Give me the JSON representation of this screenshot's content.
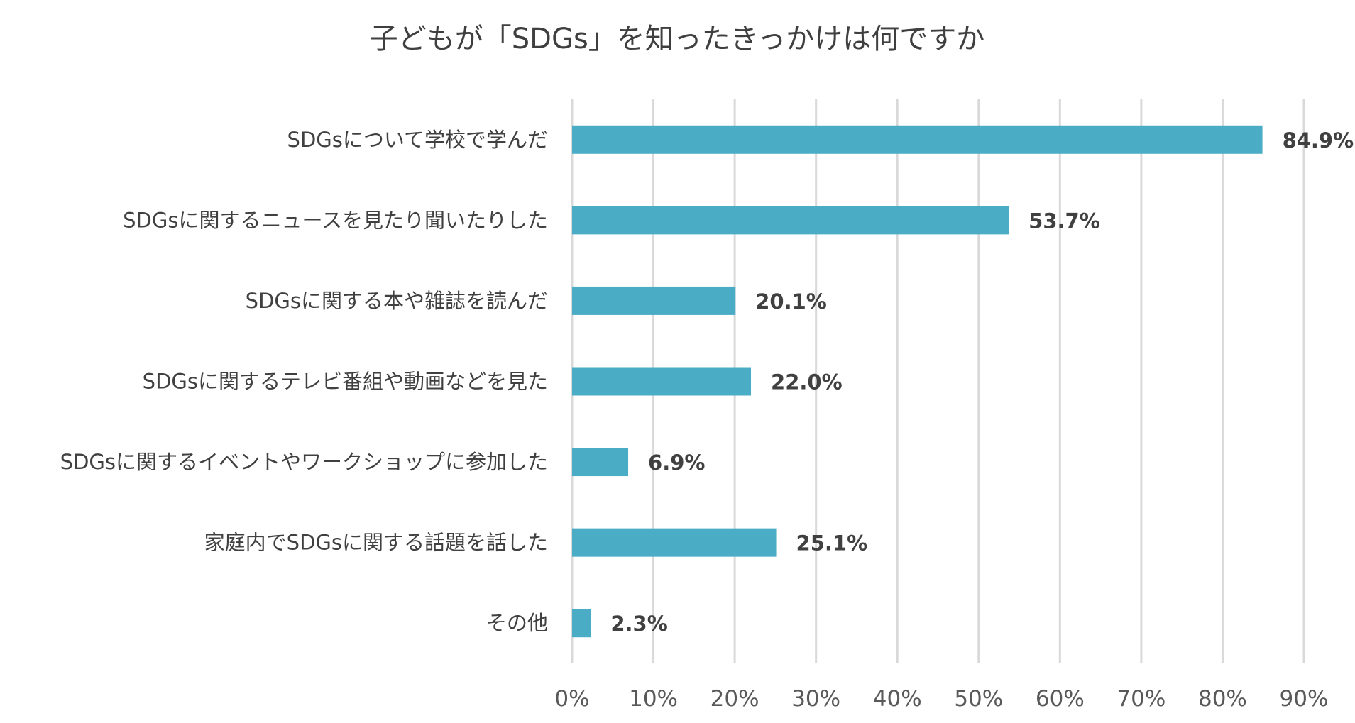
{
  "chart_data": {
    "type": "bar",
    "orientation": "horizontal",
    "title": "子どもが「SDGs」を知ったきっかけは何ですか",
    "xlabel": "",
    "ylabel": "",
    "xlim": [
      0,
      90
    ],
    "x_ticks": [
      0,
      10,
      20,
      30,
      40,
      50,
      60,
      70,
      80,
      90
    ],
    "tick_suffix": "%",
    "grid": true,
    "legend": "none",
    "bar_color": "#4bacc6",
    "categories": [
      "SDGsについて学校で学んだ",
      "SDGsに関するニュースを見たり聞いたりした",
      "SDGsに関する本や雑誌を読んだ",
      "SDGsに関するテレビ番組や動画などを見た",
      "SDGsに関するイベントやワークショップに参加した",
      "家庭内でSDGsに関する話題を話した",
      "その他"
    ],
    "values": [
      84.9,
      53.7,
      20.1,
      22.0,
      6.9,
      25.1,
      2.3
    ],
    "value_labels": [
      "84.9%",
      "53.7%",
      "20.1%",
      "22.0%",
      "6.9%",
      "25.1%",
      "2.3%"
    ]
  }
}
